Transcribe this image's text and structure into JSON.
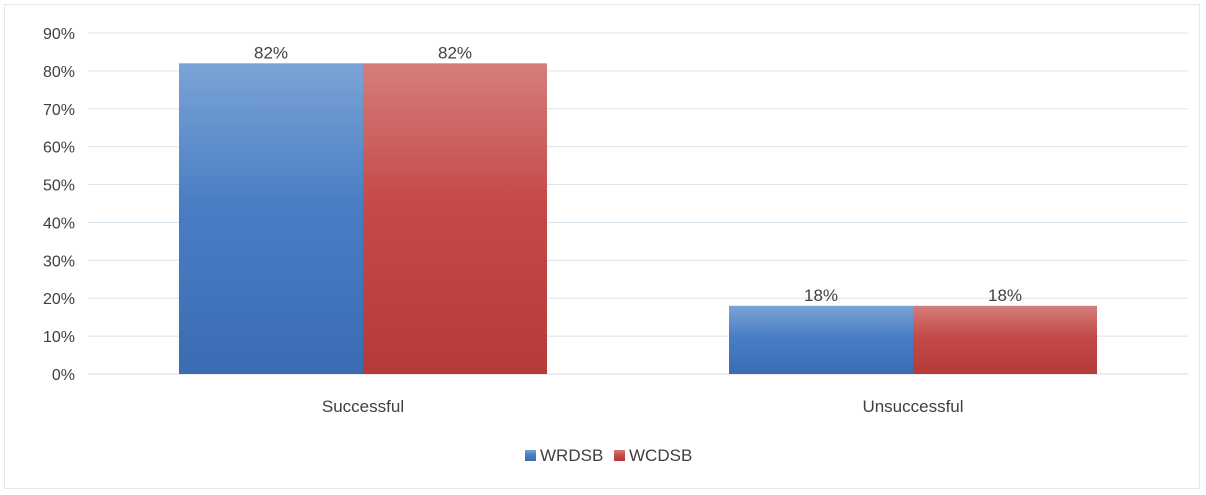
{
  "chart_data": {
    "type": "bar",
    "categories": [
      "Successful",
      "Unsuccessful"
    ],
    "series": [
      {
        "name": "WRDSB",
        "values": [
          82,
          18
        ],
        "color": "#4a7ec4",
        "color_light": "#7ba3d6",
        "color_dark": "#3b6cb3"
      },
      {
        "name": "WCDSB",
        "values": [
          82,
          18
        ],
        "color": "#c44a48",
        "color_light": "#d47e7c",
        "color_dark": "#b53b39"
      }
    ],
    "data_labels": [
      [
        "82%",
        "18%"
      ],
      [
        "82%",
        "18%"
      ]
    ],
    "ylim": [
      0,
      90
    ],
    "yticks": [
      "0%",
      "10%",
      "20%",
      "30%",
      "40%",
      "50%",
      "60%",
      "70%",
      "80%",
      "90%"
    ],
    "grid": true,
    "legend": "bottom",
    "gridline_color": "#d9e4f1",
    "axis_color": "#d0d8e4"
  }
}
